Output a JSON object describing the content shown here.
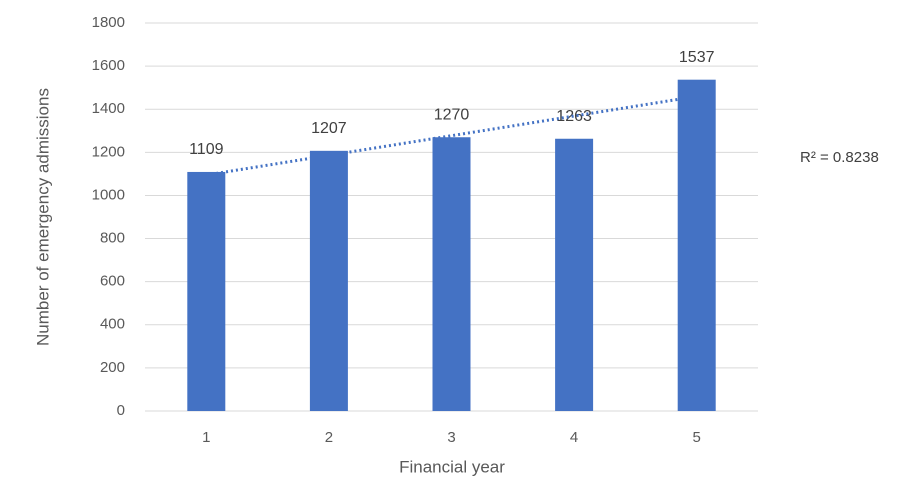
{
  "chart_data": {
    "type": "bar",
    "x_label": "Financial year",
    "y_label": "Number of emergency admissions",
    "categories": [
      "1",
      "2",
      "3",
      "4",
      "5"
    ],
    "values": [
      1109,
      1207,
      1270,
      1263,
      1537
    ],
    "color": "#4472c4",
    "ylim": [
      0,
      1800
    ],
    "yticks": [
      0,
      200,
      400,
      600,
      800,
      1000,
      1200,
      1400,
      1600,
      1800
    ],
    "grid": true,
    "trendline": {
      "type": "linear",
      "color": "#4472c4",
      "annotation": "R² = 0.8238"
    }
  }
}
